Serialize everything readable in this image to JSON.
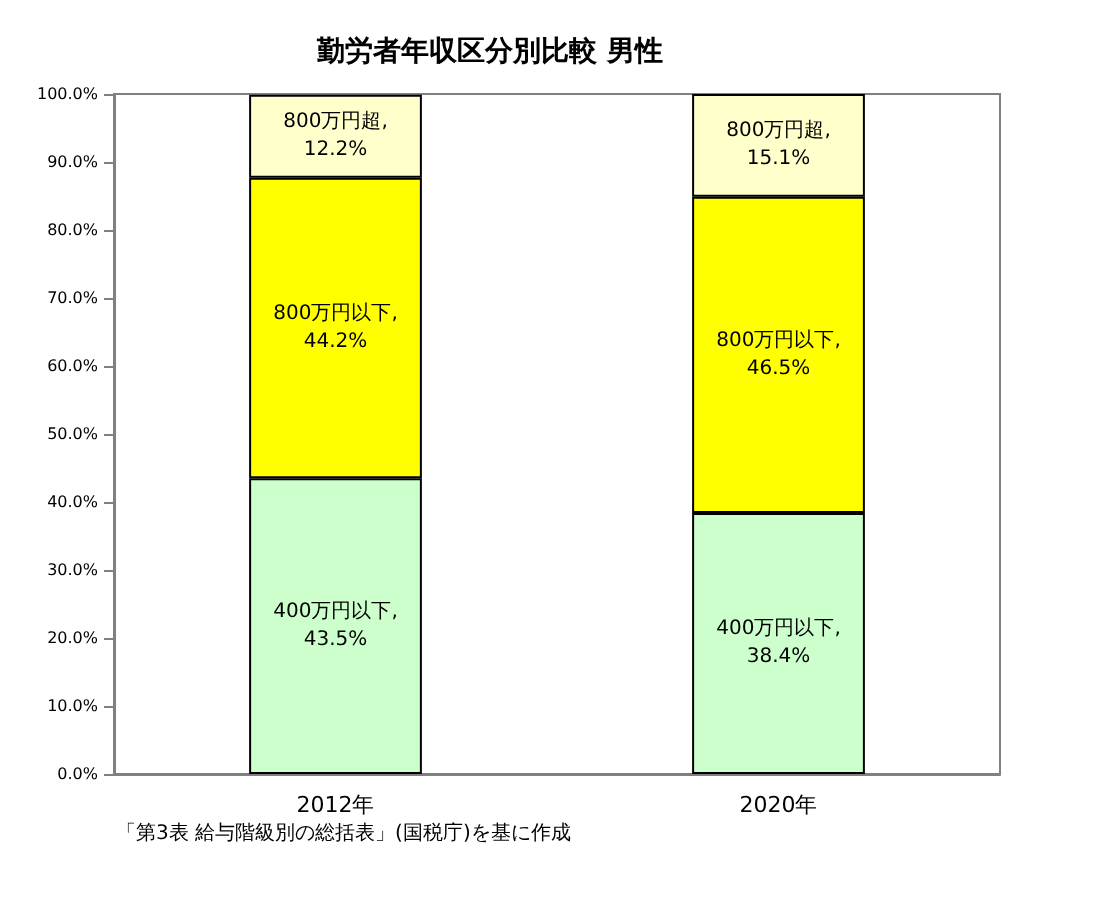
{
  "chart_data": {
    "type": "bar",
    "title": "勤労者年収区分別比較 男性",
    "categories": [
      "2012年",
      "2020年"
    ],
    "stacked": true,
    "series": [
      {
        "name": "400万円以下,",
        "color": "#ccffcc",
        "values": [
          43.5,
          38.4
        ],
        "value_labels": [
          "43.5%",
          "38.4%"
        ]
      },
      {
        "name": "800万円以下,",
        "color": "#ffff00",
        "values": [
          44.2,
          46.5
        ],
        "value_labels": [
          "44.2%",
          "46.5%"
        ]
      },
      {
        "name": "800万円超,",
        "color": "#ffffcc",
        "values": [
          12.2,
          15.1
        ],
        "value_labels": [
          "12.2%",
          "15.1%"
        ]
      }
    ],
    "ylim": [
      0,
      100
    ],
    "yticks": [
      {
        "value": 0,
        "label": "0.0%"
      },
      {
        "value": 10,
        "label": "10.0%"
      },
      {
        "value": 20,
        "label": "20.0%"
      },
      {
        "value": 30,
        "label": "30.0%"
      },
      {
        "value": 40,
        "label": "40.0%"
      },
      {
        "value": 50,
        "label": "50.0%"
      },
      {
        "value": 60,
        "label": "60.0%"
      },
      {
        "value": 70,
        "label": "70.0%"
      },
      {
        "value": 80,
        "label": "80.0%"
      },
      {
        "value": 90,
        "label": "90.0%"
      },
      {
        "value": 100,
        "label": "100.0%"
      }
    ],
    "grid": false,
    "legend": false,
    "annotations": [
      "「第3表 給与階級別の総括表」(国税庁)を基に作成"
    ]
  }
}
